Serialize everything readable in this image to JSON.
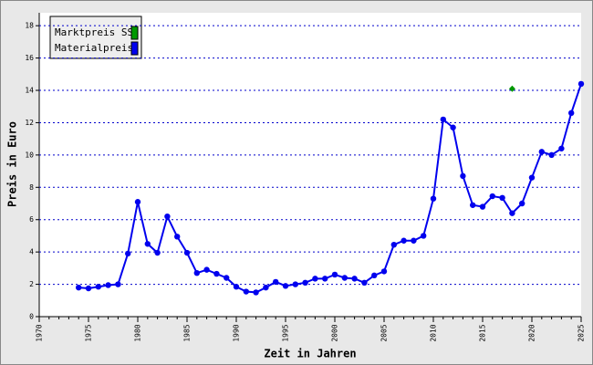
{
  "chart_data": {
    "type": "line",
    "xlabel": "Zeit in Jahren",
    "ylabel": "Preis in Euro",
    "xlim": [
      1970,
      2025
    ],
    "xticks": [
      1970,
      1975,
      1980,
      1985,
      1990,
      1995,
      2000,
      2005,
      2010,
      2015,
      2020,
      2025
    ],
    "ylim": [
      0,
      18.8
    ],
    "yticks": [
      0,
      2,
      4,
      6,
      8,
      10,
      12,
      14,
      16,
      18
    ],
    "grid": true,
    "legend": "upper left",
    "series": [
      {
        "name": "Marktpreis SS",
        "color": "#009900",
        "x": [
          2018
        ],
        "values": [
          14.1
        ]
      },
      {
        "name": "Materialpreis",
        "color": "#0000ee",
        "x": [
          1974,
          1975,
          1976,
          1977,
          1978,
          1979,
          1980,
          1981,
          1982,
          1983,
          1984,
          1985,
          1986,
          1987,
          1988,
          1989,
          1990,
          1991,
          1992,
          1993,
          1994,
          1995,
          1996,
          1997,
          1998,
          1999,
          2000,
          2001,
          2002,
          2003,
          2004,
          2005,
          2006,
          2007,
          2008,
          2009,
          2010,
          2011,
          2012,
          2013,
          2014,
          2015,
          2016,
          2017,
          2018,
          2019,
          2020,
          2021,
          2022,
          2023,
          2024,
          2025
        ],
        "values": [
          1.8,
          1.75,
          1.85,
          1.95,
          2.0,
          3.9,
          7.1,
          4.5,
          3.95,
          6.2,
          4.95,
          3.95,
          2.7,
          2.9,
          2.65,
          2.4,
          1.85,
          1.55,
          1.5,
          1.8,
          2.15,
          1.9,
          2.0,
          2.1,
          2.35,
          2.35,
          2.6,
          2.4,
          2.35,
          2.1,
          2.55,
          2.8,
          4.45,
          4.7,
          4.7,
          5.0,
          7.3,
          12.2,
          11.7,
          8.7,
          6.9,
          6.8,
          7.45,
          7.35,
          6.4,
          7.0,
          8.6,
          10.2,
          10.0,
          10.4,
          12.6,
          14.4
        ]
      }
    ]
  }
}
